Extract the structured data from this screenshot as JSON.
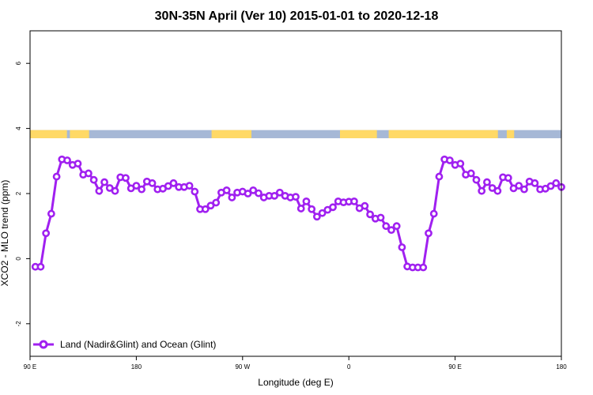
{
  "chart_data": {
    "type": "line",
    "title": "30N-35N April (Ver 10)   2015-01-01 to 2020-12-18",
    "xlabel": "Longitude (deg E)",
    "ylabel": "XCO2 - MLO trend (ppm)",
    "xlim": [
      90,
      450
    ],
    "ylim": [
      -3,
      7
    ],
    "x_ticks": [
      {
        "value": 90,
        "label": "90 E"
      },
      {
        "value": 162,
        "label": "180"
      },
      {
        "value": 234,
        "label": "90 W"
      },
      {
        "value": 306,
        "label": "0"
      },
      {
        "value": 378,
        "label": "90 E"
      },
      {
        "value": 450,
        "label": "180"
      }
    ],
    "y_ticks": [
      {
        "value": -2,
        "label": "-2"
      },
      {
        "value": 0,
        "label": "0"
      },
      {
        "value": 2,
        "label": "2"
      },
      {
        "value": 4,
        "label": "4"
      },
      {
        "value": 6,
        "label": "6"
      }
    ],
    "colors": {
      "series": "#a020f0",
      "land": "#ffd966",
      "ocean": "#a6b8d6"
    },
    "land_mask": {
      "y_range": [
        3.7,
        3.95
      ],
      "land_segments": [
        [
          90,
          115
        ],
        [
          117,
          130
        ],
        [
          213,
          240
        ],
        [
          300,
          325
        ],
        [
          333,
          407
        ],
        [
          413,
          418
        ]
      ]
    },
    "series": [
      {
        "name": "Land (Nadir&Glint) and Ocean (Glint)",
        "x": [
          93.6,
          97.2,
          100.8,
          104.4,
          108.0,
          111.6,
          115.2,
          118.8,
          122.4,
          126.0,
          129.6,
          133.2,
          136.8,
          140.4,
          144.0,
          147.6,
          151.2,
          154.8,
          158.4,
          162.0,
          165.6,
          169.2,
          172.8,
          176.4,
          180.0,
          183.6,
          187.2,
          190.8,
          194.4,
          198.0,
          201.6,
          205.2,
          208.8,
          212.4,
          216.0,
          219.6,
          223.2,
          226.8,
          230.4,
          234.0,
          237.6,
          241.2,
          244.8,
          248.4,
          252.0,
          255.6,
          259.2,
          262.8,
          266.4,
          270.0,
          273.6,
          277.2,
          280.8,
          284.4,
          288.0,
          291.6,
          295.2,
          298.8,
          302.4,
          306.0,
          309.6,
          313.2,
          316.8,
          320.4,
          324.0,
          327.6,
          331.2,
          334.8,
          338.4,
          342.0,
          345.6,
          349.2,
          352.8,
          356.4,
          360.0,
          363.6,
          367.2,
          370.8,
          374.4,
          378.0,
          381.6,
          385.2,
          388.8,
          392.4,
          396.0,
          399.6,
          403.2,
          406.8,
          410.4,
          414.0,
          417.6,
          421.2,
          424.8,
          428.4,
          432.0,
          435.6,
          439.2,
          442.8,
          446.4,
          450.0
        ],
        "y": [
          -0.25,
          -0.25,
          0.78,
          1.38,
          2.52,
          3.05,
          3.02,
          2.88,
          2.92,
          2.58,
          2.62,
          2.42,
          2.08,
          2.35,
          2.17,
          2.08,
          2.5,
          2.48,
          2.16,
          2.24,
          2.13,
          2.37,
          2.32,
          2.13,
          2.15,
          2.23,
          2.32,
          2.2,
          2.2,
          2.24,
          2.06,
          1.52,
          1.52,
          1.63,
          1.72,
          2.03,
          2.1,
          1.88,
          2.03,
          2.06,
          2.0,
          2.1,
          2.01,
          1.88,
          1.93,
          1.93,
          2.03,
          1.93,
          1.88,
          1.9,
          1.54,
          1.76,
          1.52,
          1.29,
          1.4,
          1.5,
          1.58,
          1.76,
          1.73,
          1.75,
          1.76,
          1.55,
          1.62,
          1.36,
          1.23,
          1.26,
          1.0,
          0.88,
          1.0,
          0.35,
          -0.24,
          -0.27,
          -0.27,
          -0.27,
          0.78,
          1.38,
          2.52,
          3.05,
          3.02,
          2.88,
          2.92,
          2.58,
          2.62,
          2.42,
          2.08,
          2.35,
          2.17,
          2.08,
          2.5,
          2.48,
          2.16,
          2.24,
          2.13,
          2.37,
          2.32,
          2.13,
          2.15,
          2.23,
          2.32,
          2.2
        ]
      }
    ],
    "legend": {
      "position": "bottom-left",
      "label": "Land (Nadir&Glint) and Ocean (Glint)"
    },
    "grid": false
  }
}
